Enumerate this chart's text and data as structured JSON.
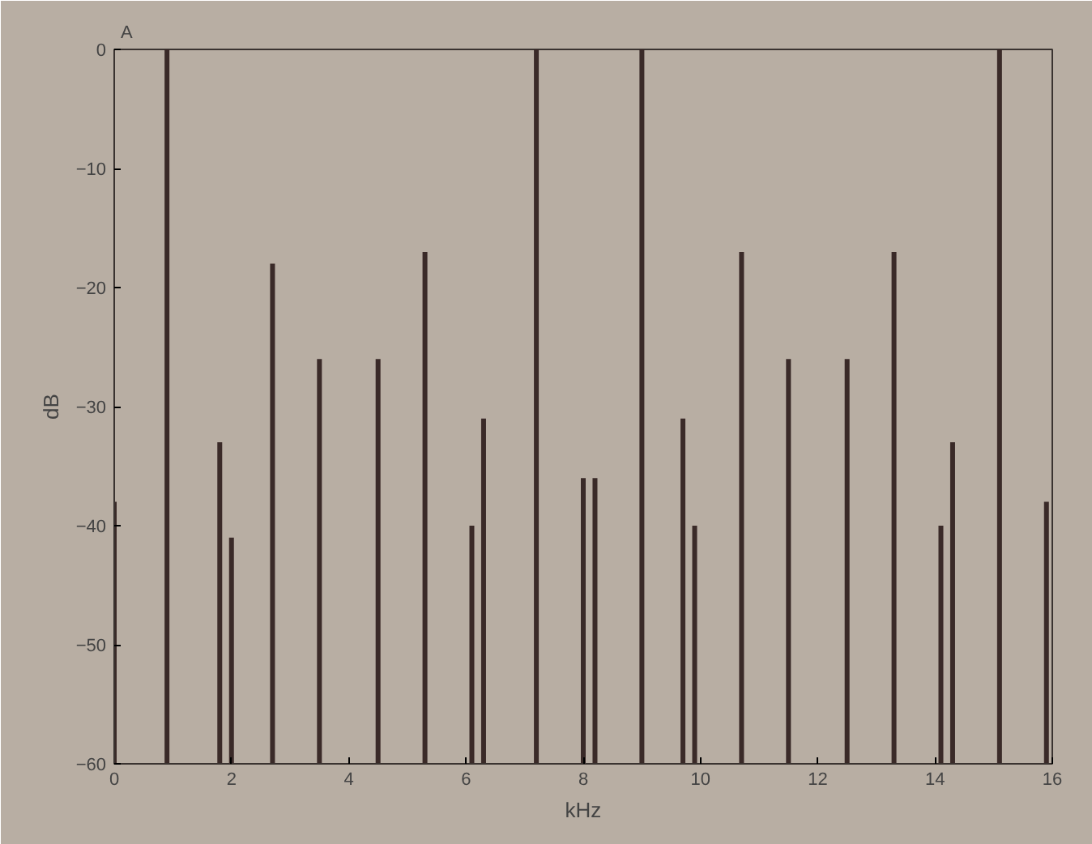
{
  "chart_data": {
    "type": "bar",
    "xlabel": "kHz",
    "ylabel": "dB",
    "annotations": [
      "A"
    ],
    "x": [
      0,
      0.9,
      1.8,
      2.0,
      2.7,
      3.5,
      4.5,
      5.3,
      6.1,
      6.3,
      7.2,
      8.0,
      8.2,
      9.0,
      9.7,
      9.9,
      10.7,
      11.5,
      12.5,
      13.3,
      14.1,
      14.3,
      15.1,
      15.9
    ],
    "base": [
      -60,
      -60,
      -60,
      -60,
      -60,
      -60,
      -60,
      -60,
      -60,
      -60,
      -60,
      -60,
      -60,
      -60,
      -60,
      -60,
      -60,
      -60,
      -60,
      -60,
      -60,
      -60,
      -60,
      -60
    ],
    "values": [
      22,
      60,
      27,
      19,
      42,
      34,
      34,
      43,
      20,
      29,
      60,
      24,
      24,
      60,
      29,
      20,
      43,
      34,
      34,
      43,
      20,
      27,
      60,
      22
    ],
    "color": "#3a2a28",
    "xlim": [
      0,
      16
    ],
    "ylim": [
      -60,
      0
    ],
    "xticks": [
      0,
      2,
      4,
      6,
      8,
      10,
      12,
      14,
      16
    ],
    "yticks": [
      -60,
      -50,
      -40,
      -30,
      -20,
      -10,
      0
    ],
    "grid": false
  }
}
